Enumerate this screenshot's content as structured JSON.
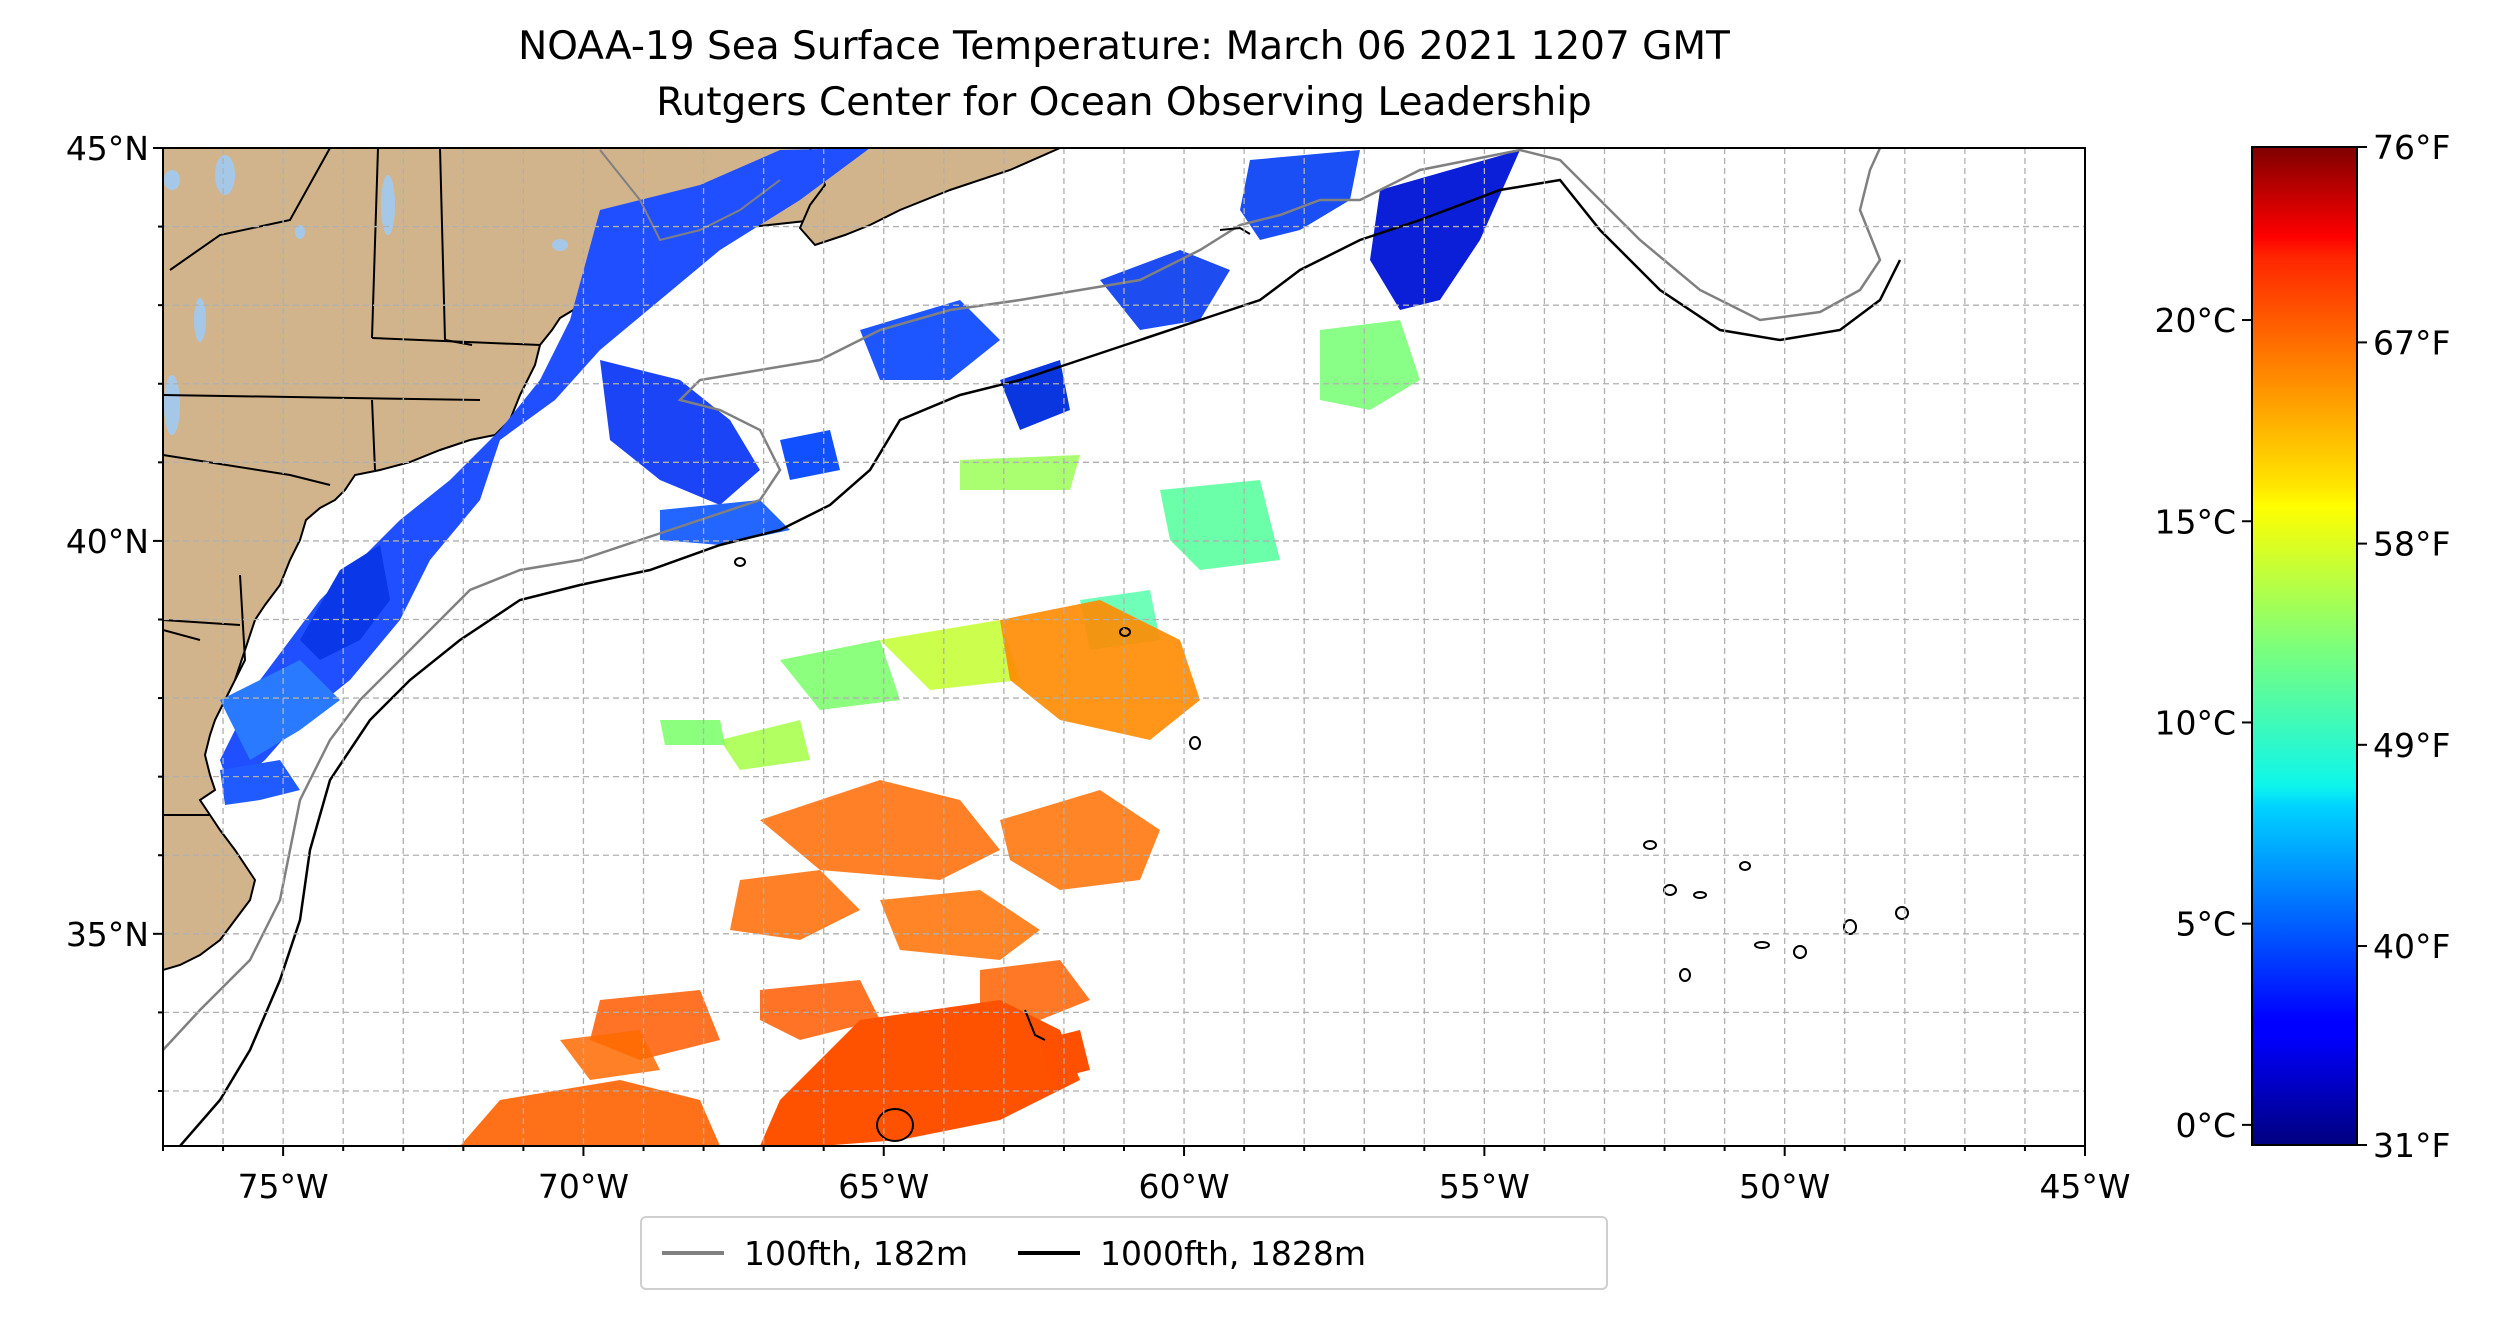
{
  "title": "NOAA-19 Sea Surface Temperature: March 06 2021 1207 GMT",
  "subtitle": "Rutgers Center for Ocean Observing Leadership",
  "map": {
    "extent": {
      "lon": [
        -77,
        -45
      ],
      "lat": [
        32.3,
        45
      ]
    },
    "lat_ticks": [
      {
        "value": 45,
        "label": "45°N"
      },
      {
        "value": 40,
        "label": "40°N"
      },
      {
        "value": 35,
        "label": "35°N"
      }
    ],
    "lon_ticks": [
      {
        "value": -75,
        "label": "75°W"
      },
      {
        "value": -70,
        "label": "70°W"
      },
      {
        "value": -65,
        "label": "65°W"
      },
      {
        "value": -60,
        "label": "60°W"
      },
      {
        "value": -55,
        "label": "55°W"
      },
      {
        "value": -50,
        "label": "50°W"
      },
      {
        "value": -45,
        "label": "45°W"
      }
    ],
    "gridlines": "dashed, 1° spacing",
    "land_color": "#d2b48c",
    "lake_color": "#a6c8e8",
    "colormap": "jet"
  },
  "colorbar": {
    "vmin_c": -0.5,
    "vmax_c": 24.3,
    "celsius_ticks": [
      {
        "value": 0,
        "label": "0°C"
      },
      {
        "value": 5,
        "label": "5°C"
      },
      {
        "value": 10,
        "label": "10°C"
      },
      {
        "value": 15,
        "label": "15°C"
      },
      {
        "value": 20,
        "label": "20°C"
      }
    ],
    "fahrenheit_ticks": [
      {
        "value": 31,
        "label": "31°F"
      },
      {
        "value": 40,
        "label": "40°F"
      },
      {
        "value": 49,
        "label": "49°F"
      },
      {
        "value": 58,
        "label": "58°F"
      },
      {
        "value": 67,
        "label": "67°F"
      },
      {
        "value": 76,
        "label": "76°F"
      }
    ]
  },
  "legend": [
    {
      "label": "100fth, 182m",
      "color": "#808080"
    },
    {
      "label": "1000fth, 1828m",
      "color": "#000000"
    }
  ]
}
